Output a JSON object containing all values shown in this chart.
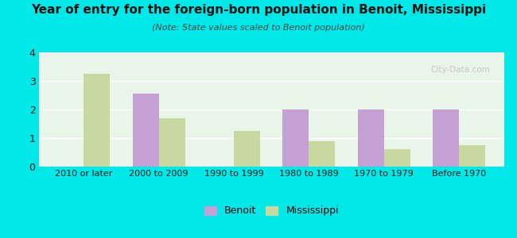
{
  "title": "Year of entry for the foreign-born population in Benoit, Mississippi",
  "subtitle": "(Note: State values scaled to Benoit population)",
  "categories": [
    "2010 or later",
    "2000 to 2009",
    "1990 to 1999",
    "1980 to 1989",
    "1970 to 1979",
    "Before 1970"
  ],
  "benoit_values": [
    0,
    2.55,
    0,
    2.0,
    2.0,
    2.0
  ],
  "mississippi_values": [
    3.25,
    1.7,
    1.25,
    0.9,
    0.6,
    0.75
  ],
  "benoit_color": "#c4a0d4",
  "mississippi_color": "#c8d8a0",
  "background_color": "#00e8e8",
  "plot_bg_color": "#e8f5e8",
  "ylim": [
    0,
    4
  ],
  "yticks": [
    0,
    1,
    2,
    3,
    4
  ],
  "bar_width": 0.35,
  "legend_benoit": "Benoit",
  "legend_mississippi": "Mississippi",
  "title_fontsize": 11,
  "subtitle_fontsize": 8,
  "tick_fontsize": 8,
  "ytick_fontsize": 9
}
